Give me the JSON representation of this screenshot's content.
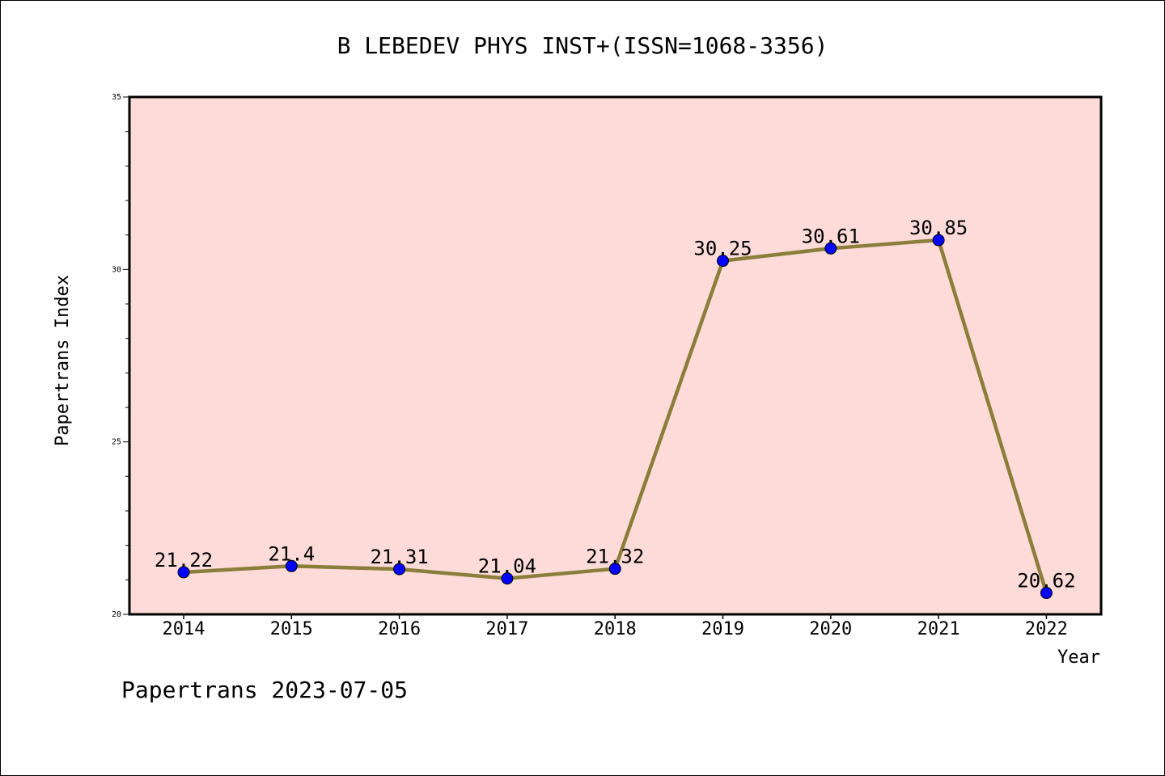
{
  "chart_data": {
    "type": "line",
    "title": "B LEBEDEV PHYS INST+(ISSN=1068-3356)",
    "xlabel": "Year",
    "ylabel": "Papertrans Index",
    "categories": [
      "2014",
      "2015",
      "2016",
      "2017",
      "2018",
      "2019",
      "2020",
      "2021",
      "2022"
    ],
    "values": [
      21.22,
      21.4,
      21.31,
      21.04,
      21.32,
      30.25,
      30.61,
      30.85,
      20.62
    ],
    "data_labels": [
      "21.22",
      "21.4",
      "21.31",
      "21.04",
      "21.32",
      "30.25",
      "30.61",
      "30.85",
      "20.62"
    ],
    "ylim": [
      20,
      35
    ],
    "yticks": [
      "20",
      "25",
      "30",
      "35"
    ],
    "grid": false,
    "footer": "Papertrans 2023-07-05",
    "colors": {
      "plot_background": "#fddbd8",
      "line": "#8b7d3a",
      "marker": "#0000ff"
    }
  }
}
